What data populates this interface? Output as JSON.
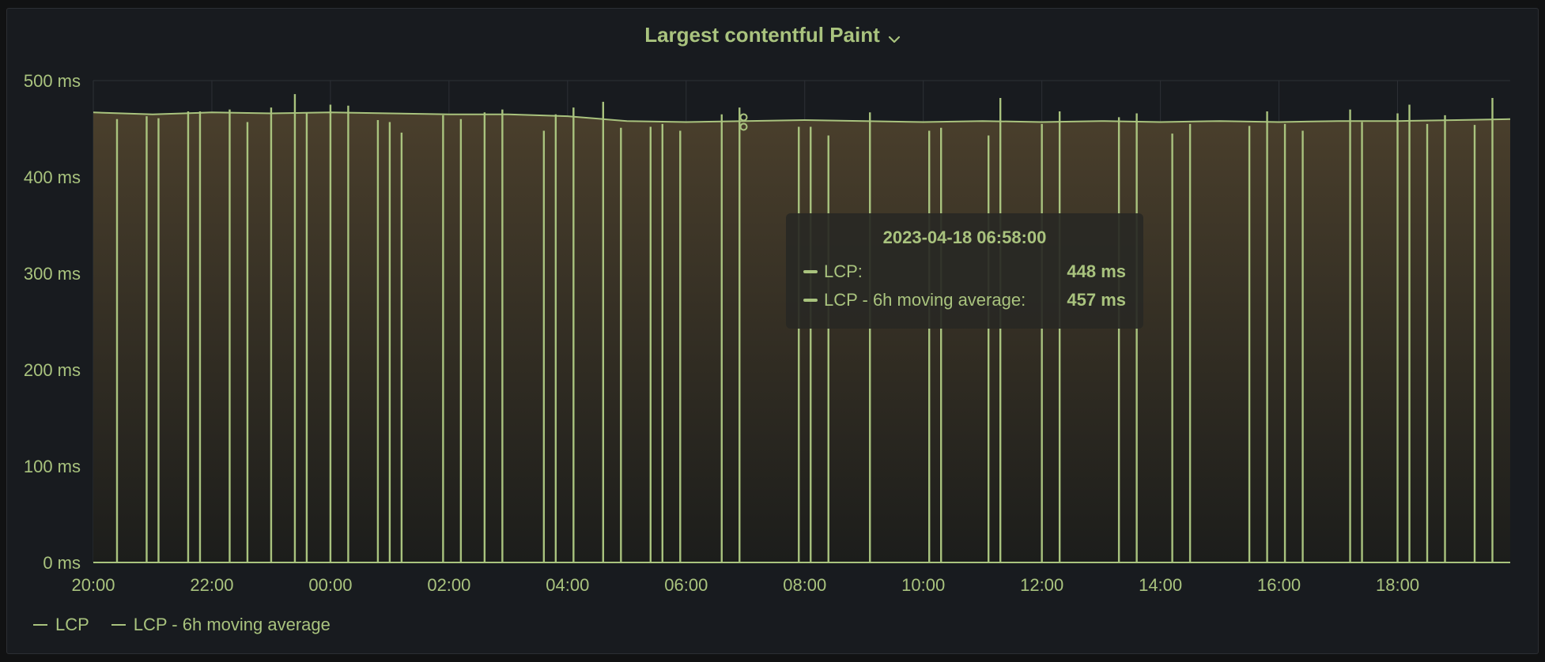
{
  "panel": {
    "title": "Largest contentful Paint",
    "menu_icon": "chevron-down-icon"
  },
  "colors": {
    "series": "#a9c37e",
    "grid": "#2d3036",
    "fill_top": "#4a3f2c",
    "fill_bottom": "#1c1d1b",
    "background": "#181b1f"
  },
  "legend": [
    {
      "label": "LCP"
    },
    {
      "label": "LCP - 6h moving average"
    }
  ],
  "tooltip": {
    "time": "2023-04-18 06:58:00",
    "rows": [
      {
        "name": "LCP:",
        "value": "448 ms"
      },
      {
        "name": "LCP - 6h moving average:",
        "value": "457 ms"
      }
    ]
  },
  "chart_data": {
    "type": "line",
    "title": "Largest contentful Paint",
    "xlabel": "",
    "ylabel": "",
    "ylim": [
      0,
      500
    ],
    "xlim_hours": [
      20.0,
      43.9
    ],
    "x_ticks": [
      "20:00",
      "22:00",
      "00:00",
      "02:00",
      "04:00",
      "06:00",
      "08:00",
      "10:00",
      "12:00",
      "14:00",
      "16:00",
      "18:00"
    ],
    "y_ticks": [
      "0 ms",
      "100 ms",
      "200 ms",
      "300 ms",
      "400 ms",
      "500 ms"
    ],
    "grid": true,
    "legend_position": "bottom-left",
    "series": [
      {
        "name": "LCP",
        "points": [
          [
            20.4,
            460
          ],
          [
            20.9,
            463
          ],
          [
            21.1,
            461
          ],
          [
            21.6,
            468
          ],
          [
            21.8,
            468
          ],
          [
            22.3,
            470
          ],
          [
            22.6,
            457
          ],
          [
            23.0,
            472
          ],
          [
            23.4,
            486
          ],
          [
            23.6,
            466
          ],
          [
            24.0,
            475
          ],
          [
            24.3,
            474
          ],
          [
            24.8,
            459
          ],
          [
            25.0,
            457
          ],
          [
            25.2,
            446
          ],
          [
            25.9,
            464
          ],
          [
            26.2,
            460
          ],
          [
            26.6,
            467
          ],
          [
            26.9,
            470
          ],
          [
            27.6,
            448
          ],
          [
            27.8,
            465
          ],
          [
            28.1,
            472
          ],
          [
            28.6,
            478
          ],
          [
            28.9,
            451
          ],
          [
            29.4,
            452
          ],
          [
            29.6,
            455
          ],
          [
            29.9,
            448
          ],
          [
            30.6,
            465
          ],
          [
            30.9,
            472
          ],
          [
            31.9,
            452
          ],
          [
            32.1,
            452
          ],
          [
            32.4,
            443
          ],
          [
            33.1,
            467
          ],
          [
            34.1,
            448
          ],
          [
            34.3,
            451
          ],
          [
            35.1,
            443
          ],
          [
            35.3,
            482
          ],
          [
            36.0,
            455
          ],
          [
            36.3,
            468
          ],
          [
            37.3,
            462
          ],
          [
            37.6,
            466
          ],
          [
            38.2,
            445
          ],
          [
            38.5,
            455
          ],
          [
            39.5,
            453
          ],
          [
            39.8,
            468
          ],
          [
            40.1,
            455
          ],
          [
            40.4,
            448
          ],
          [
            41.2,
            470
          ],
          [
            41.4,
            457
          ],
          [
            42.0,
            466
          ],
          [
            42.2,
            475
          ],
          [
            42.5,
            455
          ],
          [
            42.8,
            464
          ],
          [
            43.3,
            454
          ],
          [
            43.6,
            482
          ]
        ]
      },
      {
        "name": "LCP - 6h moving average",
        "points": [
          [
            20.0,
            467
          ],
          [
            21.0,
            465
          ],
          [
            22.0,
            467
          ],
          [
            23.0,
            466
          ],
          [
            24.0,
            467
          ],
          [
            25.0,
            466
          ],
          [
            26.0,
            465
          ],
          [
            27.0,
            465
          ],
          [
            28.0,
            463
          ],
          [
            29.0,
            458
          ],
          [
            30.0,
            457
          ],
          [
            31.0,
            458
          ],
          [
            32.0,
            459
          ],
          [
            33.0,
            458
          ],
          [
            34.0,
            457
          ],
          [
            35.0,
            458
          ],
          [
            36.0,
            457
          ],
          [
            37.0,
            458
          ],
          [
            38.0,
            457
          ],
          [
            39.0,
            458
          ],
          [
            40.0,
            457
          ],
          [
            41.0,
            458
          ],
          [
            42.0,
            458
          ],
          [
            43.0,
            459
          ],
          [
            43.9,
            460
          ]
        ]
      }
    ]
  }
}
